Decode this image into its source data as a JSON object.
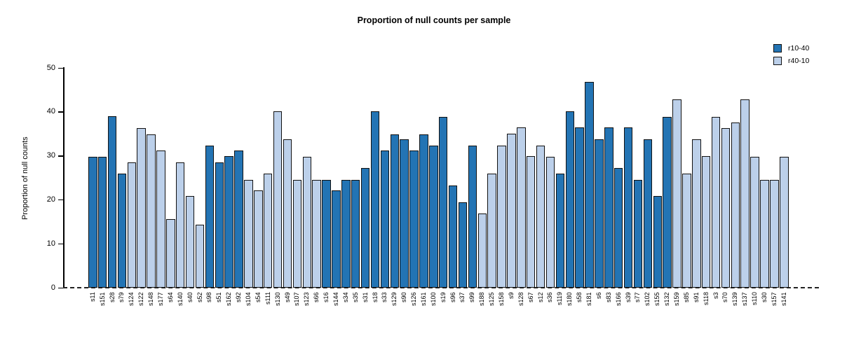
{
  "chart_data": {
    "type": "bar",
    "title": "Proportion of null counts per sample",
    "ylabel": "Proportion of null counts",
    "xlabel": "",
    "ylim": [
      0,
      50
    ],
    "yticks": [
      0,
      10,
      20,
      30,
      40,
      50
    ],
    "grid": false,
    "legend_position": "top-right",
    "zero_line_style": "dashed",
    "axis_color": "#000000",
    "bar_border_color": "#111111",
    "series": [
      {
        "name": "r10-40",
        "color": "#2374b4"
      },
      {
        "name": "r40-10",
        "color": "#bcd0ea"
      }
    ],
    "bars": [
      {
        "label": "s11",
        "value": 29.8,
        "series": "r10-40"
      },
      {
        "label": "s151",
        "value": 29.8,
        "series": "r10-40"
      },
      {
        "label": "s28",
        "value": 39.0,
        "series": "r10-40"
      },
      {
        "label": "s79",
        "value": 26.0,
        "series": "r10-40"
      },
      {
        "label": "s124",
        "value": 28.5,
        "series": "r40-10"
      },
      {
        "label": "s122",
        "value": 36.3,
        "series": "r40-10"
      },
      {
        "label": "s148",
        "value": 34.9,
        "series": "r40-10"
      },
      {
        "label": "s177",
        "value": 31.2,
        "series": "r40-10"
      },
      {
        "label": "s64",
        "value": 15.6,
        "series": "r40-10"
      },
      {
        "label": "s140",
        "value": 28.5,
        "series": "r40-10"
      },
      {
        "label": "s40",
        "value": 20.8,
        "series": "r40-10"
      },
      {
        "label": "s52",
        "value": 14.3,
        "series": "r40-10"
      },
      {
        "label": "s98",
        "value": 32.4,
        "series": "r10-40"
      },
      {
        "label": "s51",
        "value": 28.5,
        "series": "r10-40"
      },
      {
        "label": "s162",
        "value": 29.9,
        "series": "r10-40"
      },
      {
        "label": "s92",
        "value": 31.2,
        "series": "r10-40"
      },
      {
        "label": "s104",
        "value": 24.5,
        "series": "r40-10"
      },
      {
        "label": "s54",
        "value": 22.1,
        "series": "r40-10"
      },
      {
        "label": "s111",
        "value": 26.0,
        "series": "r40-10"
      },
      {
        "label": "s130",
        "value": 40.1,
        "series": "r40-10"
      },
      {
        "label": "s49",
        "value": 33.7,
        "series": "r40-10"
      },
      {
        "label": "s107",
        "value": 24.5,
        "series": "r40-10"
      },
      {
        "label": "s123",
        "value": 29.8,
        "series": "r40-10"
      },
      {
        "label": "s66",
        "value": 24.5,
        "series": "r40-10"
      },
      {
        "label": "s16",
        "value": 24.5,
        "series": "r10-40"
      },
      {
        "label": "s144",
        "value": 22.1,
        "series": "r10-40"
      },
      {
        "label": "s34",
        "value": 24.5,
        "series": "r10-40"
      },
      {
        "label": "s35",
        "value": 24.5,
        "series": "r10-40"
      },
      {
        "label": "s31",
        "value": 27.3,
        "series": "r10-40"
      },
      {
        "label": "s18",
        "value": 40.1,
        "series": "r10-40"
      },
      {
        "label": "s33",
        "value": 31.2,
        "series": "r10-40"
      },
      {
        "label": "s129",
        "value": 34.9,
        "series": "r10-40"
      },
      {
        "label": "s90",
        "value": 33.7,
        "series": "r10-40"
      },
      {
        "label": "s126",
        "value": 31.2,
        "series": "r10-40"
      },
      {
        "label": "s161",
        "value": 34.9,
        "series": "r10-40"
      },
      {
        "label": "s100",
        "value": 32.4,
        "series": "r10-40"
      },
      {
        "label": "s19",
        "value": 38.9,
        "series": "r10-40"
      },
      {
        "label": "s96",
        "value": 23.3,
        "series": "r10-40"
      },
      {
        "label": "s37",
        "value": 19.5,
        "series": "r10-40"
      },
      {
        "label": "s99",
        "value": 32.4,
        "series": "r10-40"
      },
      {
        "label": "s188",
        "value": 16.9,
        "series": "r40-10"
      },
      {
        "label": "s125",
        "value": 26.0,
        "series": "r40-10"
      },
      {
        "label": "s158",
        "value": 32.4,
        "series": "r40-10"
      },
      {
        "label": "s9",
        "value": 35.0,
        "series": "r40-10"
      },
      {
        "label": "s128",
        "value": 36.4,
        "series": "r40-10"
      },
      {
        "label": "s67",
        "value": 29.9,
        "series": "r40-10"
      },
      {
        "label": "s12",
        "value": 32.4,
        "series": "r40-10"
      },
      {
        "label": "s36",
        "value": 29.8,
        "series": "r40-10"
      },
      {
        "label": "s119",
        "value": 26.0,
        "series": "r10-40"
      },
      {
        "label": "s180",
        "value": 40.1,
        "series": "r10-40"
      },
      {
        "label": "s58",
        "value": 36.4,
        "series": "r10-40"
      },
      {
        "label": "s181",
        "value": 46.8,
        "series": "r10-40"
      },
      {
        "label": "s6",
        "value": 33.7,
        "series": "r10-40"
      },
      {
        "label": "s83",
        "value": 36.4,
        "series": "r10-40"
      },
      {
        "label": "s166",
        "value": 27.3,
        "series": "r10-40"
      },
      {
        "label": "s39",
        "value": 36.4,
        "series": "r10-40"
      },
      {
        "label": "s77",
        "value": 24.5,
        "series": "r10-40"
      },
      {
        "label": "s102",
        "value": 33.7,
        "series": "r10-40"
      },
      {
        "label": "s155",
        "value": 20.9,
        "series": "r10-40"
      },
      {
        "label": "s132",
        "value": 38.9,
        "series": "r10-40"
      },
      {
        "label": "s159",
        "value": 42.8,
        "series": "r40-10"
      },
      {
        "label": "s85",
        "value": 26.0,
        "series": "r40-10"
      },
      {
        "label": "s91",
        "value": 33.8,
        "series": "r40-10"
      },
      {
        "label": "s118",
        "value": 29.9,
        "series": "r40-10"
      },
      {
        "label": "s3",
        "value": 38.9,
        "series": "r40-10"
      },
      {
        "label": "s70",
        "value": 36.3,
        "series": "r40-10"
      },
      {
        "label": "s139",
        "value": 37.6,
        "series": "r40-10"
      },
      {
        "label": "s137",
        "value": 42.8,
        "series": "r40-10"
      },
      {
        "label": "s110",
        "value": 29.8,
        "series": "r40-10"
      },
      {
        "label": "s30",
        "value": 24.5,
        "series": "r40-10"
      },
      {
        "label": "s157",
        "value": 24.5,
        "series": "r40-10"
      },
      {
        "label": "s141",
        "value": 29.8,
        "series": "r40-10"
      }
    ]
  }
}
